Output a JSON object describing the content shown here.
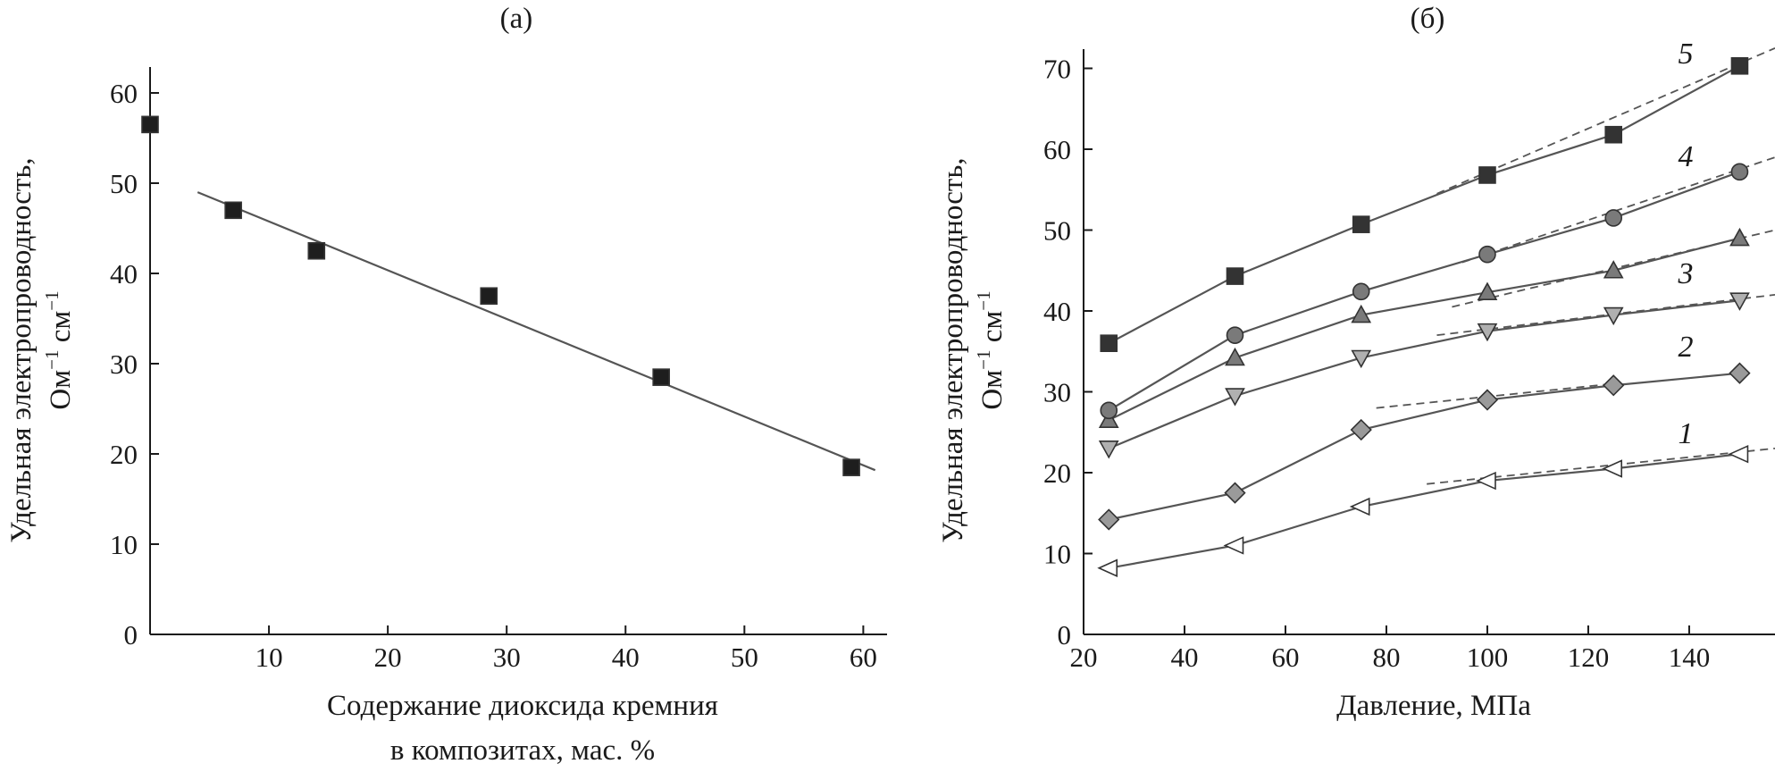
{
  "chart_data": [
    {
      "panel_label": "(а)",
      "type": "scatter",
      "xlabel_lines": [
        "Содержание диоксида кремния",
        "в композитах, мас. %"
      ],
      "ylabel_lines": [
        "Удельная электропроводность,",
        "Ом",
        "−1",
        " см",
        "−1"
      ],
      "xlim": [
        0,
        62
      ],
      "ylim": [
        0,
        65
      ],
      "xticks": [
        10,
        20,
        30,
        40,
        50,
        60
      ],
      "yticks": [
        0,
        10,
        20,
        30,
        40,
        50,
        60
      ],
      "grid": false,
      "marker": "square",
      "points": [
        {
          "x": 0,
          "y": 56.5
        },
        {
          "x": 7,
          "y": 47
        },
        {
          "x": 14,
          "y": 42.5
        },
        {
          "x": 28.5,
          "y": 37.5
        },
        {
          "x": 43,
          "y": 28.5
        },
        {
          "x": 59,
          "y": 18.5
        }
      ],
      "fit_line": {
        "x": [
          4,
          61
        ],
        "y": [
          49,
          18.2
        ]
      }
    },
    {
      "panel_label": "(б)",
      "type": "line",
      "xlabel_lines": [
        "Давление, МПа"
      ],
      "ylabel_lines": [
        "Удельная электропроводность,",
        "Ом",
        "−1",
        " см",
        "−1"
      ],
      "xlim": [
        20,
        157
      ],
      "ylim": [
        0,
        72
      ],
      "xticks": [
        20,
        40,
        60,
        80,
        100,
        120,
        140
      ],
      "yticks": [
        0,
        10,
        20,
        30,
        40,
        50,
        60,
        70
      ],
      "grid": false,
      "x": [
        25,
        50,
        75,
        100,
        125,
        150
      ],
      "series": [
        {
          "label": "1",
          "marker": "triangle-left",
          "fill": "#ffffff",
          "values": [
            8.2,
            11,
            15.8,
            19,
            20.5,
            22.3
          ],
          "trend": {
            "x": [
              88,
              157
            ],
            "y": [
              18.6,
              23
            ]
          }
        },
        {
          "label": "2",
          "marker": "diamond",
          "fill": "#9a9a9a",
          "values": [
            14.2,
            17.5,
            25.3,
            29,
            30.8,
            32.3
          ],
          "trend": {
            "x": [
              78,
              125
            ],
            "y": [
              28,
              31
            ]
          }
        },
        {
          "label": "",
          "marker": "triangle-down",
          "fill": "#b0b0b0",
          "values": [
            23,
            29.5,
            34.2,
            37.5,
            39.5,
            41.3
          ],
          "trend": {
            "x": [
              90,
              157
            ],
            "y": [
              37,
              42
            ]
          }
        },
        {
          "label": "3",
          "marker": "triangle-up",
          "fill": "#7a7a7a",
          "values": [
            26.5,
            34.2,
            39.5,
            42.3,
            45,
            49
          ],
          "trend": {
            "x": [
              93,
              157
            ],
            "y": [
              40.5,
              50
            ]
          }
        },
        {
          "label": "4",
          "marker": "circle",
          "fill": "#7a7a7a",
          "values": [
            27.7,
            37,
            42.4,
            47,
            51.5,
            57.2
          ],
          "trend": {
            "x": [
              95,
              157
            ],
            "y": [
              46,
              59
            ]
          }
        },
        {
          "label": "5",
          "marker": "square",
          "fill": "#333333",
          "values": [
            36,
            44.3,
            50.7,
            56.8,
            61.8,
            70.3
          ],
          "trend": {
            "x": [
              90,
              157
            ],
            "y": [
              54.5,
              72.5
            ]
          }
        }
      ]
    }
  ]
}
